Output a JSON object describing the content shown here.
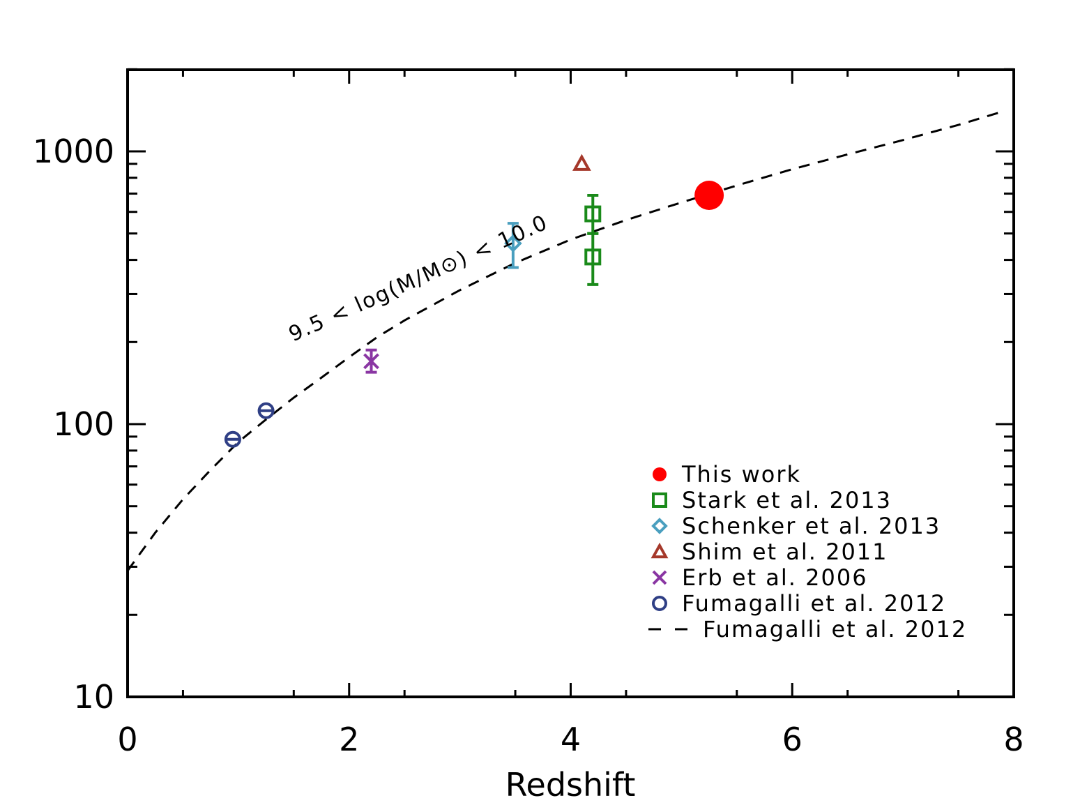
{
  "chart_data": {
    "type": "scatter",
    "xlabel": "Redshift",
    "ylabel": "",
    "xlim": [
      0,
      8
    ],
    "ylim": [
      10,
      2000
    ],
    "yscale": "log",
    "xticks": [
      {
        "value": 0,
        "label": "0"
      },
      {
        "value": 2,
        "label": "2"
      },
      {
        "value": 4,
        "label": "4"
      },
      {
        "value": 6,
        "label": "6"
      },
      {
        "value": 8,
        "label": "8"
      }
    ],
    "yticks": [
      {
        "value": 10,
        "label": "10"
      },
      {
        "value": 100,
        "label": "100"
      },
      {
        "value": 1000,
        "label": "1000"
      }
    ],
    "legend_position": "bottom-right",
    "series": [
      {
        "name": "This work",
        "marker": "filled-circle",
        "color": "#ff0000",
        "points": [
          {
            "x": 5.25,
            "y": 690
          }
        ]
      },
      {
        "name": "Stark et al. 2013",
        "marker": "square",
        "color": "#1a8a1a",
        "points": [
          {
            "x": 4.2,
            "y": 590,
            "ylo": 500,
            "yhi": 690
          },
          {
            "x": 4.2,
            "y": 410,
            "ylo": 325,
            "yhi": 500
          }
        ]
      },
      {
        "name": "Schenker et al. 2013",
        "marker": "diamond",
        "color": "#4a9fbf",
        "points": [
          {
            "x": 3.48,
            "y": 460,
            "ylo": 375,
            "yhi": 545
          }
        ]
      },
      {
        "name": "Shim et al. 2011",
        "marker": "triangle",
        "color": "#a5382a",
        "points": [
          {
            "x": 4.1,
            "y": 900
          }
        ]
      },
      {
        "name": "Erb et al. 2006",
        "marker": "cross",
        "color": "#8a36a3",
        "points": [
          {
            "x": 2.2,
            "y": 170,
            "ylo": 155,
            "yhi": 187
          }
        ]
      },
      {
        "name": "Fumagalli et al. 2012",
        "marker": "open-circle",
        "color": "#2f3f85",
        "points": [
          {
            "x": 0.95,
            "y": 88
          },
          {
            "x": 1.25,
            "y": 112
          }
        ]
      },
      {
        "name": "Fumagalli et al. 2012",
        "marker": "dashed-line",
        "color": "#000000",
        "points": [
          {
            "x": 0.0,
            "y": 29
          },
          {
            "x": 0.1,
            "y": 33
          },
          {
            "x": 0.25,
            "y": 40
          },
          {
            "x": 0.5,
            "y": 53
          },
          {
            "x": 0.75,
            "y": 68
          },
          {
            "x": 1.0,
            "y": 86
          },
          {
            "x": 1.25,
            "y": 104
          },
          {
            "x": 1.5,
            "y": 125
          },
          {
            "x": 1.75,
            "y": 148
          },
          {
            "x": 2.0,
            "y": 176
          },
          {
            "x": 2.25,
            "y": 208
          },
          {
            "x": 2.5,
            "y": 240
          },
          {
            "x": 3.0,
            "y": 310
          },
          {
            "x": 3.5,
            "y": 390
          },
          {
            "x": 4.0,
            "y": 475
          },
          {
            "x": 4.5,
            "y": 560
          },
          {
            "x": 5.0,
            "y": 650
          },
          {
            "x": 5.5,
            "y": 750
          },
          {
            "x": 6.0,
            "y": 860
          },
          {
            "x": 6.5,
            "y": 975
          },
          {
            "x": 7.0,
            "y": 1100
          },
          {
            "x": 7.5,
            "y": 1250
          },
          {
            "x": 7.9,
            "y": 1400
          }
        ]
      }
    ],
    "annotation": {
      "text": "9.5 < log(M/M⊙) < 10.0",
      "x": 1.5,
      "y": 280,
      "rotation_deg": -24
    }
  }
}
